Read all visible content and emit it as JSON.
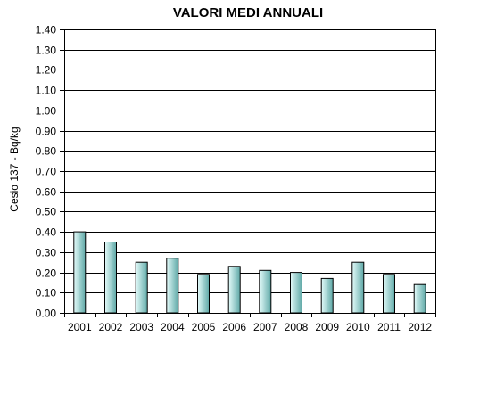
{
  "chart_data": {
    "type": "bar",
    "title": "VALORI MEDI ANNUALI",
    "xlabel": "",
    "ylabel": "Cesio 137 - Bq/kg",
    "ylim": [
      0,
      1.4
    ],
    "ytick_step": 0.1,
    "grid": true,
    "categories": [
      "2001",
      "2002",
      "2003",
      "2004",
      "2005",
      "2006",
      "2007",
      "2008",
      "2009",
      "2010",
      "2011",
      "2012"
    ],
    "values": [
      0.4,
      0.35,
      0.25,
      0.27,
      0.19,
      0.23,
      0.21,
      0.2,
      0.17,
      0.25,
      0.19,
      0.14
    ],
    "colors": {
      "bar_light": "#e4fbfa",
      "bar_dark": "#5ea8a6",
      "bar_stroke": "#000000",
      "grid": "#000000"
    }
  }
}
